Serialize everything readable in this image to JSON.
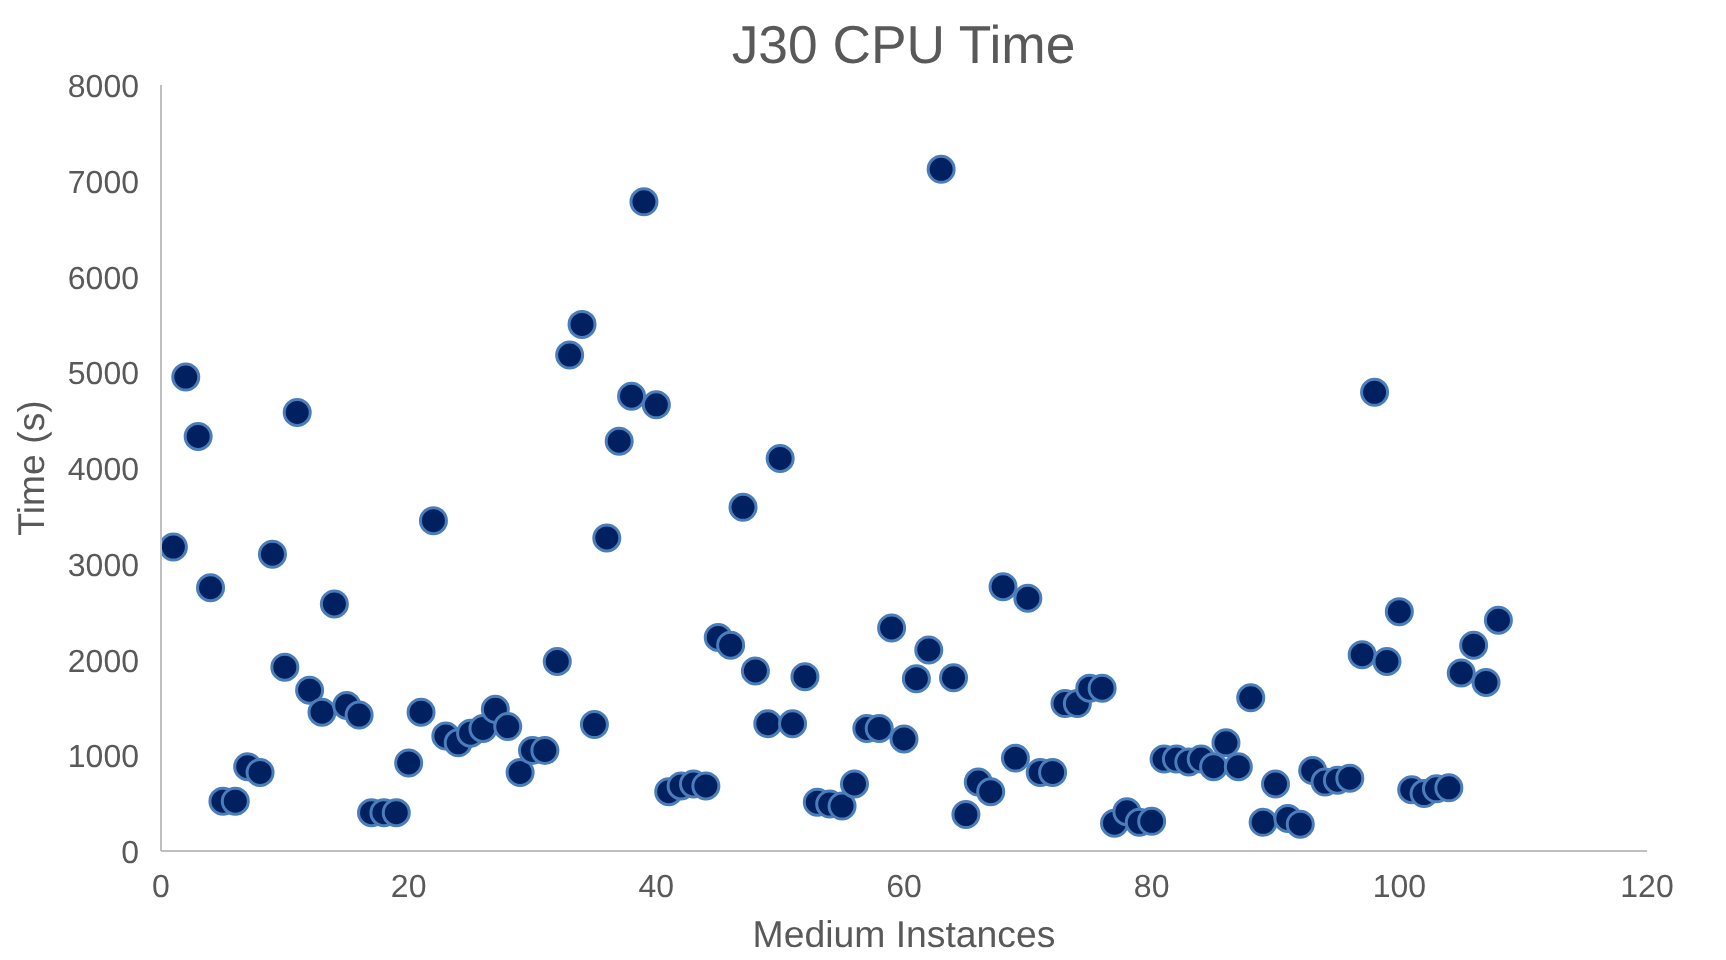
{
  "chart_data": {
    "type": "scatter",
    "title": "J30 CPU Time",
    "xlabel": "Medium Instances",
    "ylabel": "Time (s)",
    "x": [
      1,
      2,
      3,
      4,
      5,
      6,
      7,
      8,
      9,
      10,
      11,
      12,
      13,
      14,
      15,
      16,
      17,
      18,
      19,
      20,
      21,
      22,
      23,
      24,
      25,
      26,
      27,
      28,
      29,
      30,
      31,
      32,
      33,
      34,
      35,
      36,
      37,
      38,
      39,
      40,
      41,
      42,
      43,
      44,
      45,
      46,
      47,
      48,
      49,
      50,
      51,
      52,
      53,
      54,
      55,
      56,
      57,
      58,
      59,
      60,
      61,
      62,
      63,
      64,
      65,
      66,
      67,
      68,
      69,
      70,
      71,
      72,
      73,
      74,
      75,
      76,
      77,
      78,
      79,
      80,
      81,
      82,
      83,
      84,
      85,
      86,
      87,
      88,
      89,
      90,
      91,
      92,
      93,
      94,
      95,
      96,
      97,
      98,
      99,
      100,
      101,
      102,
      103,
      104,
      105,
      106,
      107,
      108
    ],
    "series": [
      {
        "color": "#002060",
        "values": [
          3175,
          4950,
          4330,
          2750,
          520,
          520,
          880,
          820,
          3100,
          1920,
          4580,
          1680,
          1450,
          2580,
          1520,
          1420,
          400,
          400,
          400,
          920,
          1450,
          3450,
          1200,
          1130,
          1230,
          1280,
          1480,
          1300,
          820,
          1050,
          1050,
          1980,
          5180,
          5500,
          1320,
          3270,
          4280,
          4750,
          6780,
          4660,
          620,
          680,
          700,
          680,
          2230,
          2150,
          3590,
          1880,
          1330,
          4100,
          1330,
          1820,
          510,
          490,
          470,
          700,
          1280,
          1280,
          2330,
          1170,
          1800,
          2100,
          7120,
          1810,
          380,
          720,
          620,
          2760,
          970,
          2640,
          820,
          820,
          1540,
          1540,
          1700,
          1700,
          290,
          410,
          300,
          310,
          960,
          960,
          930,
          960,
          880,
          1130,
          880,
          1600,
          300,
          700,
          340,
          280,
          840,
          720,
          740,
          760,
          2050,
          4790,
          1980,
          2500,
          640,
          600,
          650,
          660,
          1860,
          2150,
          1760,
          2410
        ]
      }
    ],
    "xlim": [
      0,
      120
    ],
    "xticks": [
      0,
      20,
      40,
      60,
      80,
      100,
      120
    ],
    "ylim": [
      0,
      8000
    ],
    "yticks": [
      0,
      1000,
      2000,
      3000,
      4000,
      5000,
      6000,
      7000,
      8000
    ],
    "grid": false,
    "marker": "circle"
  }
}
